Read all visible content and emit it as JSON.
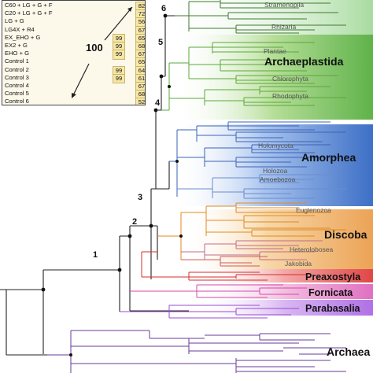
{
  "table": {
    "rows": [
      {
        "label": "C60 + LG + G + F",
        "v1": "",
        "v2": "82"
      },
      {
        "label": "C20 + LG + G + F",
        "v1": "",
        "v2": "72"
      },
      {
        "label": "LG + G",
        "v1": "",
        "v2": "56"
      },
      {
        "label": "LG4X + R4",
        "v1": "",
        "v2": "67"
      },
      {
        "label": "EX_EHO + G",
        "v1": "99",
        "v2": "65"
      },
      {
        "label": "EX2 + G",
        "v1": "99",
        "v2": "68"
      },
      {
        "label": "EHO + G",
        "v1": "99",
        "v2": "67"
      },
      {
        "label": "Control 1",
        "v1": "",
        "v2": "65"
      },
      {
        "label": "Control 2",
        "v1": "99",
        "v2": "64"
      },
      {
        "label": "Control 3",
        "v1": "99",
        "v2": "61"
      },
      {
        "label": "Control 4",
        "v1": "",
        "v2": "67"
      },
      {
        "label": "Control 5",
        "v1": "",
        "v2": "68"
      },
      {
        "label": "Control 6",
        "v1": "",
        "v2": "52"
      }
    ],
    "big_value": "100"
  },
  "nodes": [
    "1",
    "2",
    "3",
    "4",
    "5",
    "6"
  ],
  "clades": {
    "stramenopila": "Stramenopila",
    "rhizaria": "Rhizaria",
    "archaeplastida": "Archaeplastida",
    "plantae": "Plantae",
    "chlorophyta": "Chlorophyta",
    "rhodophyta": "Rhodophyta",
    "amorphea": "Amorphea",
    "holomycota": "Holomycota",
    "holozoa": "Holozoa",
    "amoebozoa": "Amoebozoa",
    "discoba": "Discoba",
    "euglenozoa": "Euglenozoa",
    "heterolobosea": "Heterolobosea",
    "jakobida": "Jakobida",
    "preaxostyla": "Preaxostyla",
    "fornicata": "Fornicata",
    "parabasalia": "Parabasalia",
    "archaea": "Archaea"
  },
  "colors": {
    "sar": "#4e8c3a",
    "archaeplastida": "#5aa83a",
    "amorphea": "#3b63b8",
    "discoba": "#e08a20",
    "preaxostyla": "#d62d2d",
    "fornicata": "#d64aa8",
    "parabasalia": "#9a4bd0",
    "archaea": "#6a3a9a",
    "root": "#222222"
  }
}
